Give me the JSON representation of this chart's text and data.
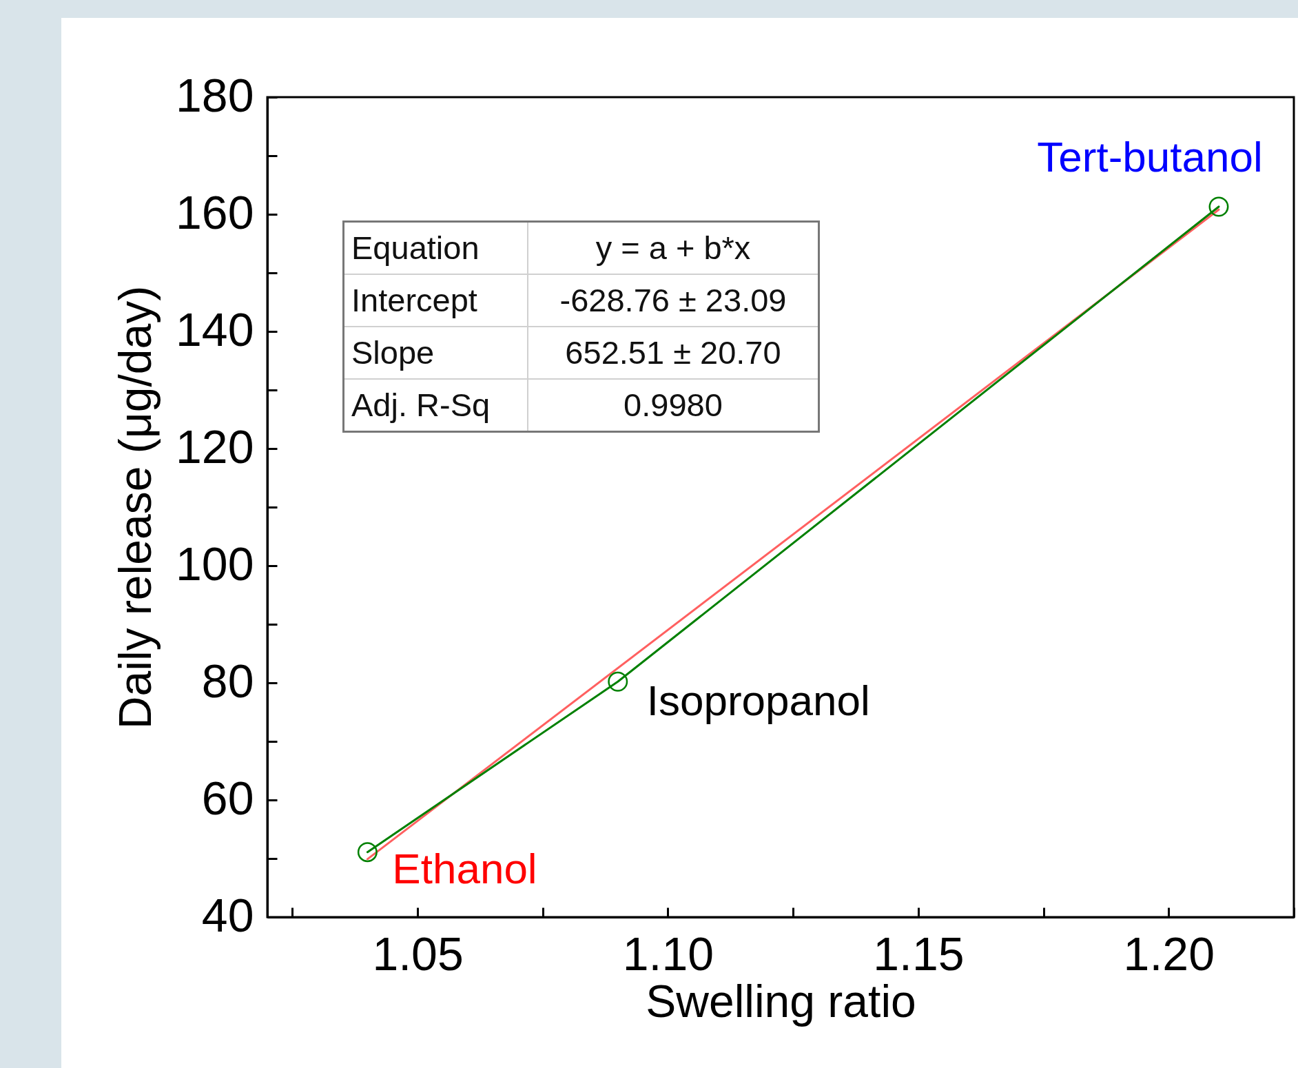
{
  "chart_data": {
    "type": "line",
    "xlabel": "Swelling ratio",
    "ylabel": "Daily release (μg/day)",
    "xlim": [
      1.02,
      1.225
    ],
    "xticks": [
      {
        "value": 1.025,
        "label": null
      },
      1.05,
      {
        "value": 1.075,
        "label": null
      },
      {
        "value": 1.1,
        "label": "1.10"
      },
      {
        "value": 1.125,
        "label": null
      },
      1.15,
      {
        "value": 1.175,
        "label": null
      },
      {
        "value": 1.2,
        "label": "1.20"
      },
      {
        "value": 1.225,
        "label": null
      }
    ],
    "ylim": [
      40,
      180
    ],
    "yticks": [
      40,
      {
        "value": 50,
        "label": null
      },
      60,
      {
        "value": 70,
        "label": null
      },
      80,
      {
        "value": 90,
        "label": null
      },
      100,
      {
        "value": 110,
        "label": null
      },
      120,
      {
        "value": 130,
        "label": null
      },
      140,
      {
        "value": 150,
        "label": null
      },
      160,
      {
        "value": 170,
        "label": null
      },
      180
    ],
    "marker": "circle",
    "grid": false,
    "series": [
      {
        "color": "#ff6060",
        "x": [
          1.04,
          1.21
        ],
        "values": [
          49.9,
          160.8
        ],
        "marker": "none"
      },
      {
        "color": "#008000",
        "x": [
          1.04,
          1.09,
          1.21
        ],
        "values": [
          51.1,
          80.2,
          161.3
        ]
      }
    ],
    "annotations": [
      {
        "text": "Ethanol",
        "x": 1.04,
        "y": 51.1
      },
      {
        "text": "Isopropanol",
        "x": 1.09,
        "y": 80.2
      },
      {
        "text": "Tert-butanol",
        "x": 1.21,
        "y": 161.3
      },
      "Equation",
      "y = a + b*x",
      "Intercept",
      "-628.76 ± 23.09",
      "Slope",
      "652.51 ± 20.70",
      "Adj. R-Sq",
      "0.9980"
    ]
  }
}
